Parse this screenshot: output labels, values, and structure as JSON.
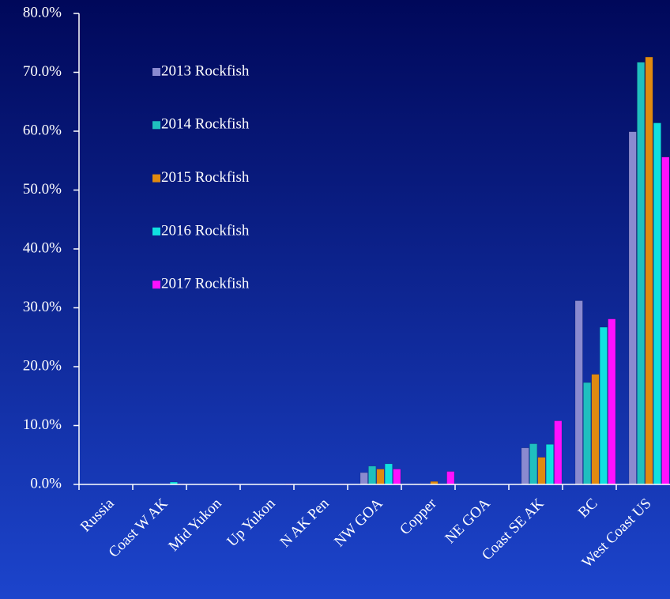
{
  "chart_data": {
    "type": "bar",
    "categories": [
      "Russia",
      "Coast W AK",
      "Mid Yukon",
      "Up Yukon",
      "N AK Pen",
      "NW GOA",
      "Copper",
      "NE GOA",
      "Coast SE AK",
      "BC",
      "West Coast US"
    ],
    "series": [
      {
        "name": "2013 Rockfish",
        "color": "#8a8ad0",
        "values": [
          0,
          0,
          0,
          0,
          0,
          2.0,
          0.1,
          0,
          6.2,
          31.2,
          59.9
        ]
      },
      {
        "name": "2014 Rockfish",
        "color": "#1fbfbf",
        "values": [
          0,
          0.1,
          0,
          0,
          0,
          3.1,
          0,
          0,
          6.9,
          17.3,
          71.7
        ]
      },
      {
        "name": "2015 Rockfish",
        "color": "#e08a10",
        "values": [
          0,
          0,
          0,
          0,
          0,
          2.6,
          0.5,
          0,
          4.6,
          18.7,
          72.6
        ]
      },
      {
        "name": "2016 Rockfish",
        "color": "#10e0e0",
        "values": [
          0,
          0.4,
          0,
          0,
          0,
          3.5,
          0,
          0.1,
          6.8,
          26.7,
          61.4
        ]
      },
      {
        "name": "2017 Rockfish",
        "color": "#ff10ff",
        "values": [
          0,
          0.1,
          0.1,
          0.1,
          0.1,
          2.6,
          2.2,
          0,
          10.8,
          28.1,
          55.6
        ]
      }
    ],
    "ylim": [
      0,
      80
    ],
    "yticks": [
      {
        "value": 0,
        "label": "0.0%"
      },
      {
        "value": 10,
        "label": "10.0%"
      },
      {
        "value": 20,
        "label": "20.0%"
      },
      {
        "value": 30,
        "label": "30.0%"
      },
      {
        "value": 40,
        "label": "40.0%"
      },
      {
        "value": 50,
        "label": "50.0%"
      },
      {
        "value": 60,
        "label": "60.0%"
      },
      {
        "value": 70,
        "label": "70.0%"
      },
      {
        "value": 80,
        "label": "80.0%"
      }
    ],
    "legend": "upper left"
  }
}
